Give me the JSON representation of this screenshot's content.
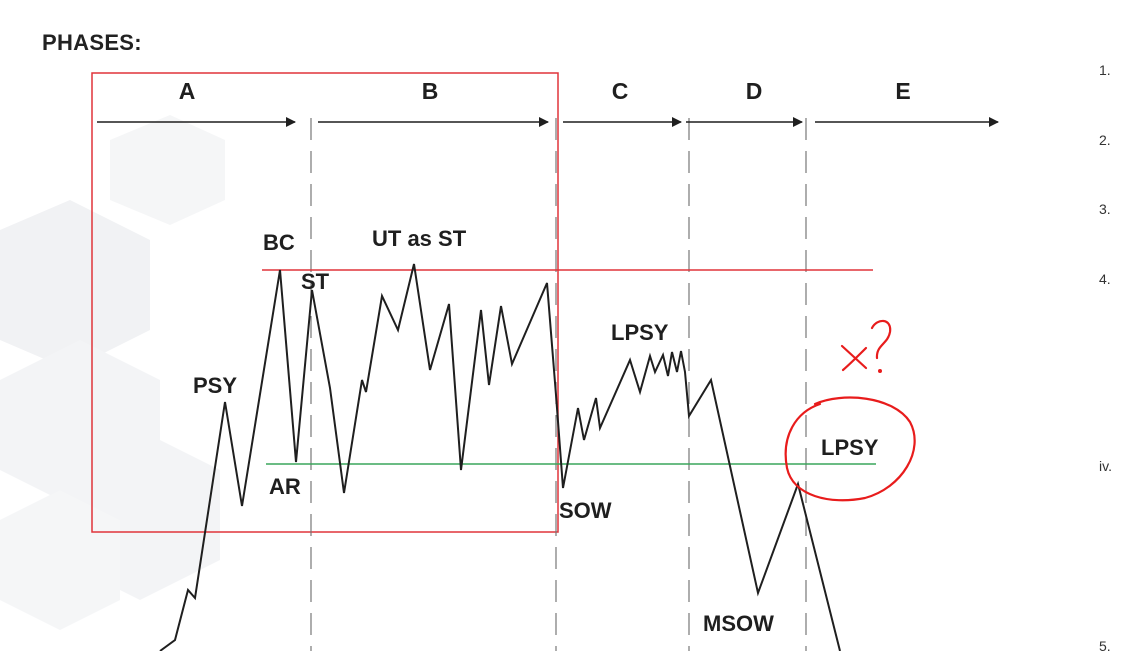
{
  "heading": "PHASES:",
  "phases": [
    "A",
    "B",
    "C",
    "D",
    "E"
  ],
  "events": {
    "psy": "PSY",
    "bc": "BC",
    "ar": "AR",
    "st": "ST",
    "ut": "UT as ST",
    "sow": "SOW",
    "lpsy1": "LPSY",
    "lpsy2": "LPSY",
    "msow": "MSOW"
  },
  "annotation": "x?",
  "list_markers": [
    "1.",
    "2.",
    "3.",
    "4.",
    "iv.",
    "5."
  ],
  "colors": {
    "resistance_line": "#e0343a",
    "support_line": "#3aa55b",
    "highlight_box": "#e0343a",
    "annotation": "#e81c1c",
    "price_path": "#1f1f1f"
  }
}
